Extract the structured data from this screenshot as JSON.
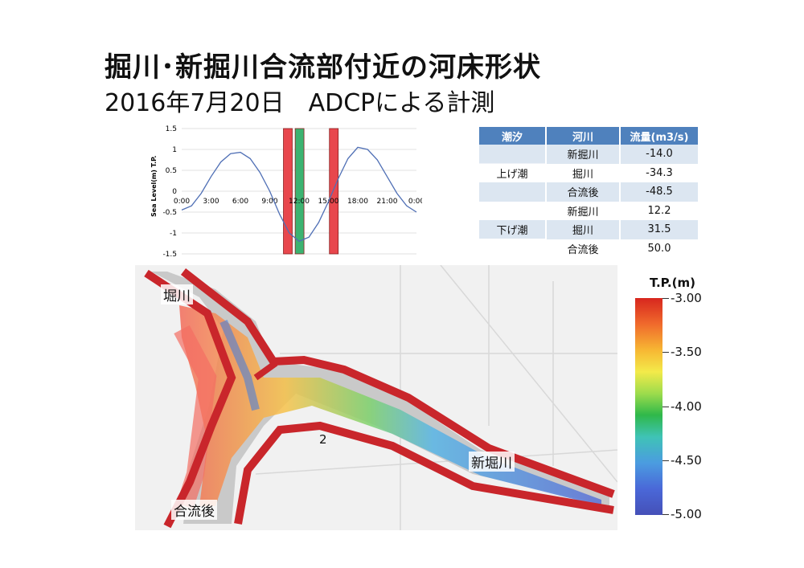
{
  "title": "掘川･新掘川合流部付近の河床形状",
  "subtitle": "2016年7月20日　ADCPによる計測",
  "chart_data": {
    "type": "line",
    "ylabel": "Sea Level(m) T.P.",
    "x_ticks": [
      "0:00",
      "3:00",
      "6:00",
      "9:00",
      "12:00",
      "15:00",
      "18:00",
      "21:00",
      "0:00"
    ],
    "y_ticks": [
      "1.5",
      "1",
      "0.5",
      "0",
      "-0.5",
      "-1",
      "-1.5"
    ],
    "ylim": [
      -1.5,
      1.5
    ],
    "xlim": [
      0,
      24
    ],
    "series": [
      {
        "color": "#4f6fb5",
        "x": [
          0,
          1,
          2,
          3,
          4,
          5,
          6,
          7,
          8,
          9,
          10,
          11,
          12,
          13,
          14,
          15,
          16,
          17,
          18,
          19,
          20,
          21,
          22,
          23,
          24
        ],
        "values": [
          -0.45,
          -0.35,
          -0.05,
          0.35,
          0.7,
          0.9,
          0.93,
          0.78,
          0.45,
          0.0,
          -0.55,
          -1.0,
          -1.2,
          -1.1,
          -0.75,
          -0.25,
          0.3,
          0.78,
          1.05,
          1.0,
          0.75,
          0.35,
          -0.05,
          -0.35,
          -0.5
        ]
      }
    ],
    "highlight_bands": [
      {
        "color": "#e8474d",
        "start": 10.4,
        "end": 11.3
      },
      {
        "color": "#3cb371",
        "start": 11.6,
        "end": 12.5
      },
      {
        "color": "#e8474d",
        "start": 15.1,
        "end": 16.0
      }
    ],
    "grid": true
  },
  "table": {
    "headers": [
      "潮汐",
      "河川",
      "流量(m3/s)"
    ],
    "groups": [
      {
        "tide": "上げ潮",
        "rows": [
          {
            "river": "新掘川",
            "flow": "-14.0"
          },
          {
            "river": "掘川",
            "flow": "-34.3"
          },
          {
            "river": "合流後",
            "flow": "-48.5"
          }
        ]
      },
      {
        "tide": "下げ潮",
        "rows": [
          {
            "river": "新掘川",
            "flow": "12.2"
          },
          {
            "river": "掘川",
            "flow": "31.5"
          },
          {
            "river": "合流後",
            "flow": "50.0"
          }
        ]
      }
    ]
  },
  "map": {
    "labels": {
      "horikawa": "堀川",
      "shinhorikawa": "新堀川",
      "merged": "合流後",
      "marker": "2"
    }
  },
  "colorbar": {
    "title": "T.P.(m)",
    "ticks": [
      "-3.00",
      "-3.50",
      "-4.00",
      "-4.50",
      "-5.00"
    ]
  }
}
